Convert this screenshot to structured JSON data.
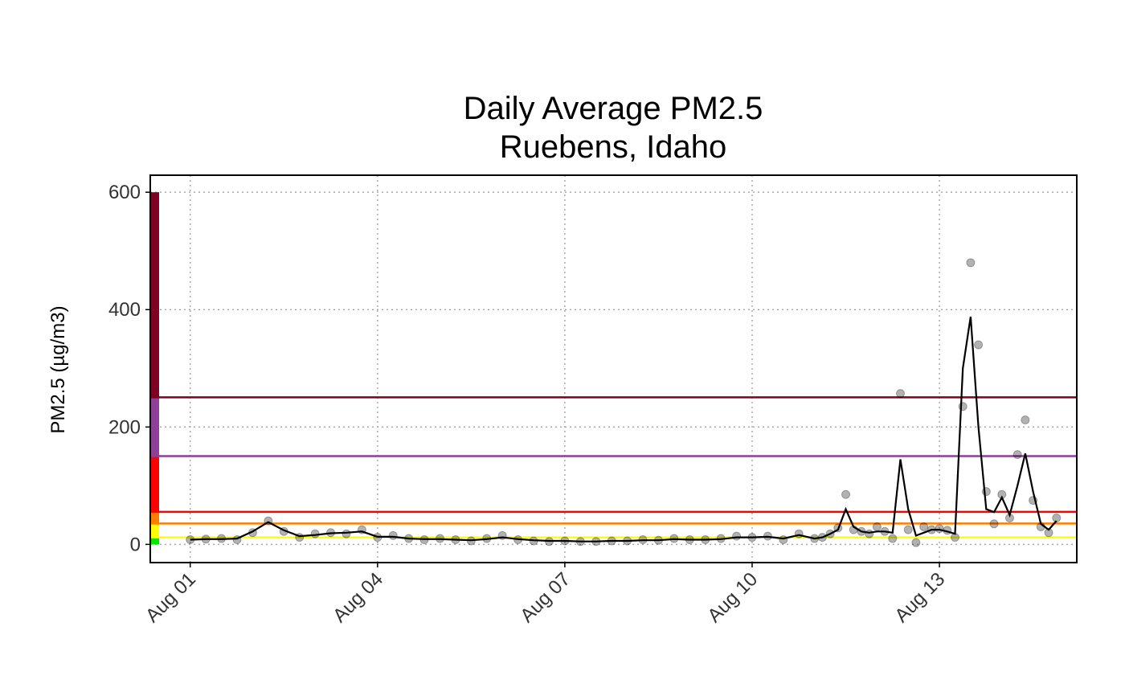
{
  "chart_data": {
    "type": "scatter",
    "title": "Daily Average PM2.5",
    "subtitle": "Ruebens, Idaho",
    "y_label": "PM2.5 (µg/m3)",
    "x": [
      1.0,
      1.25,
      1.5,
      1.75,
      2.0,
      2.25,
      2.5,
      2.75,
      3.0,
      3.25,
      3.5,
      3.75,
      4.0,
      4.25,
      4.5,
      4.75,
      5.0,
      5.25,
      5.5,
      5.75,
      6.0,
      6.25,
      6.5,
      6.75,
      7.0,
      7.25,
      7.5,
      7.75,
      8.0,
      8.25,
      8.5,
      8.75,
      9.0,
      9.25,
      9.5,
      9.75,
      10.0,
      10.25,
      10.5,
      10.75,
      11.0,
      11.125,
      11.25,
      11.375,
      11.5,
      11.625,
      11.75,
      11.875,
      12.0,
      12.125,
      12.25,
      12.375,
      12.5,
      12.625,
      12.75,
      12.875,
      13.0,
      13.125,
      13.25,
      13.375,
      13.5,
      13.625,
      13.75,
      13.875,
      14.0,
      14.125,
      14.25,
      14.375,
      14.5,
      14.625,
      14.75,
      14.875
    ],
    "series": [
      {
        "type": "scatter",
        "color": "#000000",
        "opacity": 0.3,
        "values": [
          8,
          9,
          10,
          8,
          20,
          40,
          22,
          12,
          18,
          20,
          18,
          25,
          12,
          15,
          10,
          8,
          10,
          8,
          6,
          10,
          15,
          8,
          6,
          5,
          6,
          5,
          5,
          6,
          6,
          8,
          7,
          10,
          8,
          8,
          10,
          14,
          12,
          14,
          8,
          18,
          10,
          12,
          18,
          28,
          85,
          25,
          22,
          18,
          30,
          22,
          10,
          257,
          25,
          3,
          30,
          25,
          27,
          24,
          12,
          235,
          480,
          340,
          90,
          35,
          85,
          45,
          153,
          212,
          75,
          30,
          20,
          45
        ]
      },
      {
        "type": "line",
        "color": "#000000",
        "values": [
          8,
          9,
          9,
          10,
          22,
          38,
          24,
          14,
          16,
          19,
          20,
          22,
          13,
          13,
          10,
          9,
          9,
          8,
          7,
          9,
          12,
          9,
          7,
          6,
          6,
          5,
          5,
          6,
          6,
          7,
          7,
          9,
          8,
          8,
          9,
          12,
          12,
          13,
          10,
          16,
          10,
          12,
          18,
          25,
          60,
          30,
          22,
          20,
          22,
          22,
          20,
          145,
          60,
          15,
          20,
          25,
          25,
          22,
          18,
          300,
          388,
          200,
          60,
          55,
          80,
          50,
          100,
          155,
          90,
          35,
          25,
          40
        ]
      }
    ],
    "aqi_breaks": [
      0,
      12,
      35.5,
      55.5,
      150.5,
      250.5,
      600
    ],
    "aqi_colors": [
      "#00e400",
      "#ffff00",
      "#ff7e00",
      "#ff0000",
      "#8f3f97",
      "#7e0023"
    ],
    "xlim": [
      0.36,
      15.2
    ],
    "ylim": [
      -31,
      629
    ],
    "xticks": [
      {
        "value": 1,
        "label": "Aug 01"
      },
      {
        "value": 4,
        "label": "Aug 04"
      },
      {
        "value": 7,
        "label": "Aug 07"
      },
      {
        "value": 10,
        "label": "Aug 10"
      },
      {
        "value": 13,
        "label": "Aug 13"
      }
    ],
    "yticks": [
      0,
      200,
      400,
      600
    ],
    "grid": true
  }
}
